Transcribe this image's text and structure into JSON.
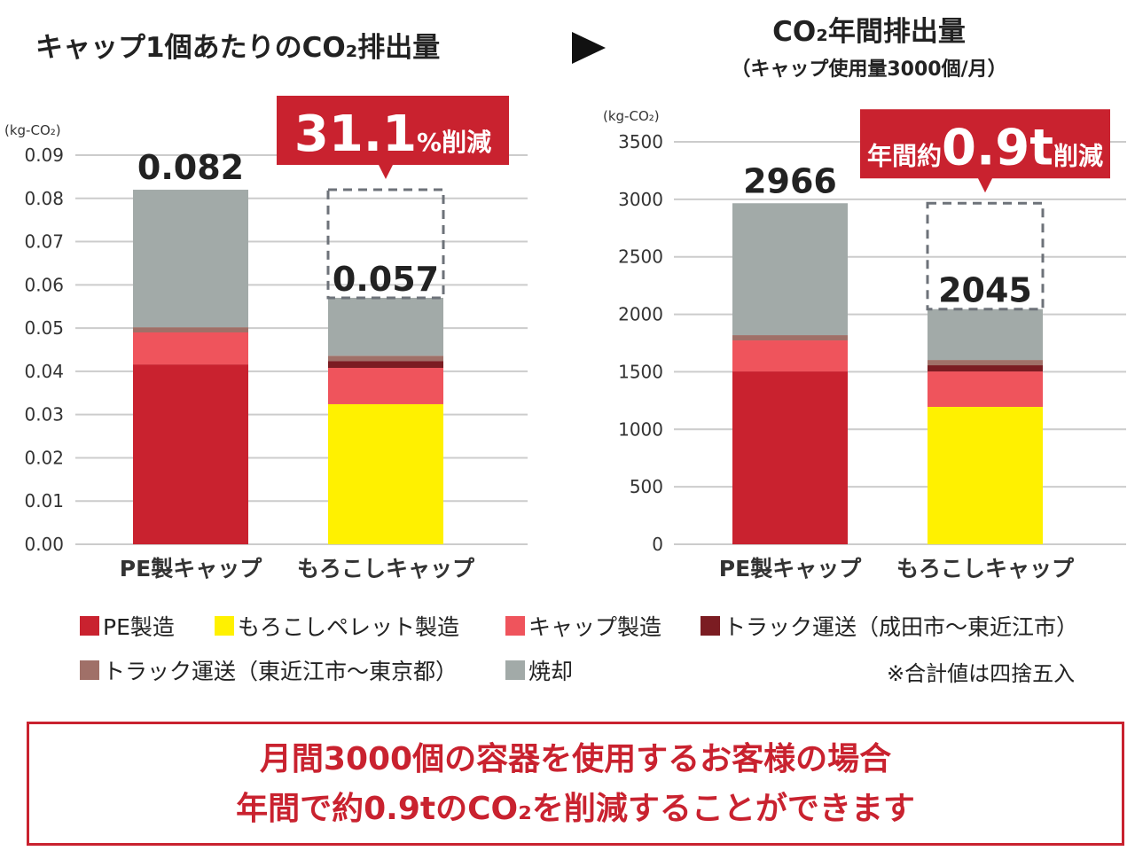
{
  "chart_data": [
    {
      "type": "bar",
      "stacked": true,
      "title": "キャップ1個あたりのCO₂排出量",
      "ylabel": "(kg-CO₂)",
      "ylim": [
        0,
        0.09
      ],
      "yticks": [
        "0.00",
        "0.01",
        "0.02",
        "0.03",
        "0.04",
        "0.05",
        "0.06",
        "0.07",
        "0.08",
        "0.09"
      ],
      "categories": [
        "PE製キャップ",
        "もろこしキャップ"
      ],
      "totals": [
        "0.082",
        "0.057"
      ],
      "series": [
        {
          "name": "PE製造",
          "values": [
            0.0416,
            0
          ]
        },
        {
          "name": "もろこしペレット製造",
          "values": [
            0,
            0.0324
          ]
        },
        {
          "name": "キャップ製造",
          "values": [
            0.0074,
            0.0084
          ]
        },
        {
          "name": "トラック運送（成田市～東近江市）",
          "values": [
            0,
            0.0016
          ]
        },
        {
          "name": "トラック運送（東近江市～東京都）",
          "values": [
            0.0012,
            0.0012
          ]
        },
        {
          "name": "焼却",
          "values": [
            0.0318,
            0.0134
          ]
        }
      ],
      "callout": {
        "big": "31.1",
        "small": "%削減"
      }
    },
    {
      "type": "bar",
      "stacked": true,
      "title": "CO₂年間排出量",
      "subtitle": "（キャップ使用量3000個/月）",
      "ylabel": "(kg-CO₂)",
      "ylim": [
        0,
        3500
      ],
      "yticks": [
        "0",
        "500",
        "1000",
        "1500",
        "2000",
        "2500",
        "3000",
        "3500"
      ],
      "categories": [
        "PE製キャップ",
        "もろこしキャップ"
      ],
      "totals": [
        "2966",
        "2045"
      ],
      "series": [
        {
          "name": "PE製造",
          "values": [
            1503,
            0
          ]
        },
        {
          "name": "もろこしペレット製造",
          "values": [
            0,
            1195
          ]
        },
        {
          "name": "キャップ製造",
          "values": [
            270,
            308
          ]
        },
        {
          "name": "トラック運送（成田市～東近江市）",
          "values": [
            0,
            54
          ]
        },
        {
          "name": "トラック運送（東近江市～東京都）",
          "values": [
            46,
            46
          ]
        },
        {
          "name": "焼却",
          "values": [
            1147,
            442
          ]
        }
      ],
      "callout": {
        "pre": "年間約",
        "big": "0.9t",
        "small": "削減"
      }
    }
  ],
  "colors": [
    "#c9222f",
    "#fff100",
    "#ef545c",
    "#7b1c22",
    "#a07068",
    "#a2aaa8"
  ],
  "legend_note": "※合計値は四捨五入",
  "message": {
    "line1": "月間3000個の容器を使用するお客様の場合",
    "line2": "年間で約0.9tのCO₂を削減することができます"
  }
}
